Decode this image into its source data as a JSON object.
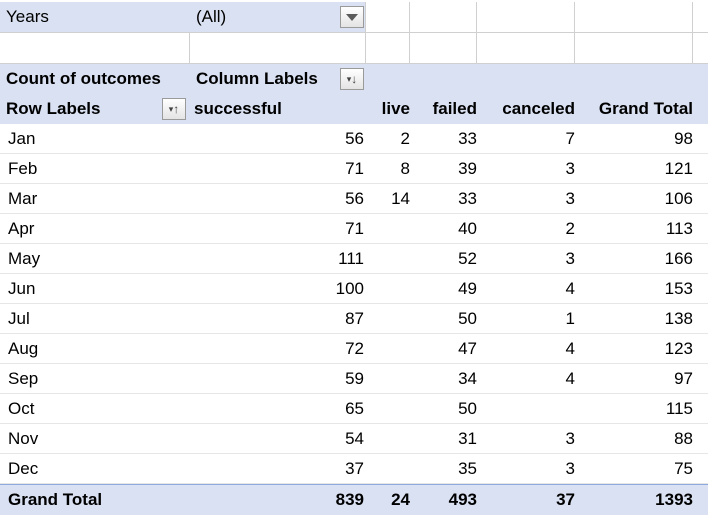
{
  "filter": {
    "field_label": "Years",
    "field_value": "(All)",
    "dropdown_icon": "chevron-down-icon"
  },
  "pivot": {
    "corner_label": "Count of outcomes",
    "column_labels_header": "Column Labels",
    "row_labels_header": "Row Labels",
    "columns": [
      "successful",
      "live",
      "failed",
      "canceled",
      "Grand Total"
    ],
    "rows": [
      {
        "label": "Jan",
        "values": [
          "56",
          "2",
          "33",
          "7",
          "98"
        ]
      },
      {
        "label": "Feb",
        "values": [
          "71",
          "8",
          "39",
          "3",
          "121"
        ]
      },
      {
        "label": "Mar",
        "values": [
          "56",
          "14",
          "33",
          "3",
          "106"
        ]
      },
      {
        "label": "Apr",
        "values": [
          "71",
          "",
          "40",
          "2",
          "113"
        ]
      },
      {
        "label": "May",
        "values": [
          "111",
          "",
          "52",
          "3",
          "166"
        ]
      },
      {
        "label": "Jun",
        "values": [
          "100",
          "",
          "49",
          "4",
          "153"
        ]
      },
      {
        "label": "Jul",
        "values": [
          "87",
          "",
          "50",
          "1",
          "138"
        ]
      },
      {
        "label": "Aug",
        "values": [
          "72",
          "",
          "47",
          "4",
          "123"
        ]
      },
      {
        "label": "Sep",
        "values": [
          "59",
          "",
          "34",
          "4",
          "97"
        ]
      },
      {
        "label": "Oct",
        "values": [
          "65",
          "",
          "50",
          "",
          "115"
        ]
      },
      {
        "label": "Nov",
        "values": [
          "54",
          "",
          "31",
          "3",
          "88"
        ]
      },
      {
        "label": "Dec",
        "values": [
          "37",
          "",
          "35",
          "3",
          "75"
        ]
      }
    ],
    "grand_total": {
      "label": "Grand Total",
      "values": [
        "839",
        "24",
        "493",
        "37",
        "1393"
      ]
    }
  },
  "colors": {
    "header_fill": "#d9e1f2",
    "total_border": "#8ea9db"
  }
}
